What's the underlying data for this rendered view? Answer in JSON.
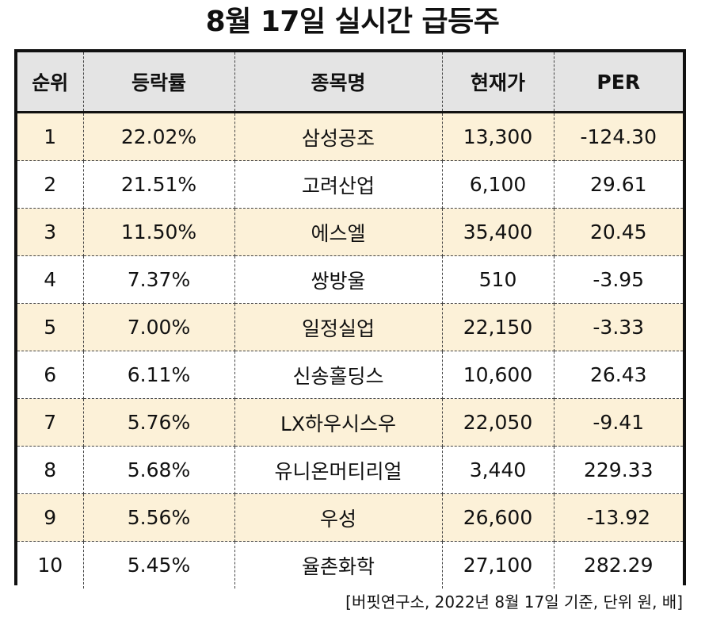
{
  "title": "8월 17일 실시간 급등주",
  "table": {
    "headers": [
      "순위",
      "등락률",
      "종목명",
      "현재가",
      "PER"
    ],
    "rows": [
      [
        "1",
        "22.02%",
        "삼성공조",
        "13,300",
        "-124.30"
      ],
      [
        "2",
        "21.51%",
        "고려산업",
        "6,100",
        "29.61"
      ],
      [
        "3",
        "11.50%",
        "에스엘",
        "35,400",
        "20.45"
      ],
      [
        "4",
        "7.37%",
        "쌍방울",
        "510",
        "-3.95"
      ],
      [
        "5",
        "7.00%",
        "일정실업",
        "22,150",
        "-3.33"
      ],
      [
        "6",
        "6.11%",
        "신송홀딩스",
        "10,600",
        "26.43"
      ],
      [
        "7",
        "5.76%",
        "LX하우시스우",
        "22,050",
        "-9.41"
      ],
      [
        "8",
        "5.68%",
        "유니온머티리얼",
        "3,440",
        "229.33"
      ],
      [
        "9",
        "5.56%",
        "우성",
        "26,600",
        "-13.92"
      ],
      [
        "10",
        "5.45%",
        "율촌화학",
        "27,100",
        "282.29"
      ]
    ]
  },
  "footnote": "[버핏연구소, 2022년 8월 17일 기준, 단위 원, 배]",
  "colors": {
    "header_bg": "#e4e4e4",
    "odd_row_bg": "#fcf1d8",
    "even_row_bg": "#ffffff",
    "border": "#111111"
  }
}
